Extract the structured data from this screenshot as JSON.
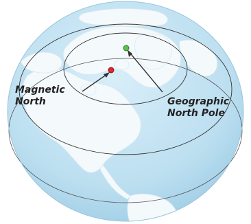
{
  "labels": {
    "magnetic_line1": "Magnetic",
    "magnetic_line2": "North",
    "geographic_line1": "Geographic",
    "geographic_line2": "North Pole"
  },
  "colors": {
    "ocean": "#c6e4f3",
    "land": "#f4f9fc",
    "magnetic_pole": "#e0262e",
    "geographic_pole": "#5cc04a",
    "lines": "#333333"
  }
}
